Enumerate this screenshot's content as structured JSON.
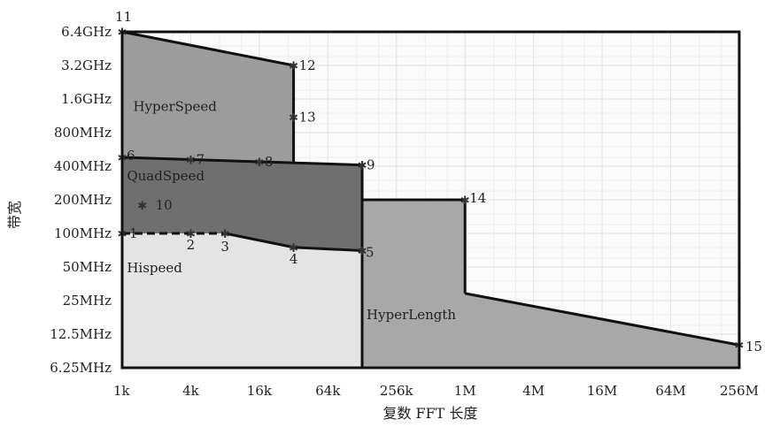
{
  "chart_data": {
    "type": "area",
    "xlabel": "复数 FFT 长度",
    "ylabel": "带宽",
    "x_scale": "log2",
    "y_scale": "log2",
    "x_ticks": [
      "1k",
      "4k",
      "16k",
      "64k",
      "256k",
      "1M",
      "4M",
      "16M",
      "64M",
      "256M"
    ],
    "y_ticks": [
      "6.25MHz",
      "12.5MHz",
      "25MHz",
      "50MHz",
      "100MHz",
      "200MHz",
      "400MHz",
      "800MHz",
      "1.6GHz",
      "3.2GHz",
      "6.4GHz"
    ],
    "xlim": [
      "1k",
      "256M"
    ],
    "ylim": [
      "6.25MHz",
      "6.4GHz"
    ],
    "grid": true,
    "regions": [
      {
        "name": "Hispeed",
        "color": "#e4e4e4",
        "boundary": [
          [
            "1k",
            "6.25MHz"
          ],
          [
            "1k",
            "100MHz"
          ],
          [
            "8k",
            "100MHz"
          ],
          [
            "32k",
            "75MHz"
          ],
          [
            "128k",
            "70MHz"
          ],
          [
            "128k",
            "6.25MHz"
          ]
        ]
      },
      {
        "name": "QuadSpeed",
        "color": "#6f6f6f",
        "boundary": [
          [
            "1k",
            "100MHz"
          ],
          [
            "1k",
            "480MHz"
          ],
          [
            "128k",
            "410MHz"
          ],
          [
            "128k",
            "70MHz"
          ],
          [
            "32k",
            "75MHz"
          ],
          [
            "8k",
            "100MHz"
          ]
        ]
      },
      {
        "name": "HyperSpeed",
        "color": "#9c9c9c",
        "boundary": [
          [
            "1k",
            "480MHz"
          ],
          [
            "1k",
            "6.4GHz"
          ],
          [
            "32k",
            "3.2GHz"
          ],
          [
            "32k",
            "430MHz"
          ]
        ]
      },
      {
        "name": "HyperLength",
        "color": "#a8a8a8",
        "boundary": [
          [
            "128k",
            "6.25MHz"
          ],
          [
            "128k",
            "200MHz"
          ],
          [
            "1M",
            "200MHz"
          ],
          [
            "1M",
            "29MHz"
          ],
          [
            "256M",
            "10MHz"
          ],
          [
            "256M",
            "6.25MHz"
          ]
        ]
      }
    ],
    "points": [
      {
        "label": "1",
        "x": "1k",
        "y": "100MHz"
      },
      {
        "label": "2",
        "x": "4k",
        "y": "100MHz"
      },
      {
        "label": "3",
        "x": "8k",
        "y": "100MHz"
      },
      {
        "label": "4",
        "x": "32k",
        "y": "75MHz"
      },
      {
        "label": "5",
        "x": "128k",
        "y": "70MHz"
      },
      {
        "label": "6",
        "x": "1k",
        "y": "480MHz"
      },
      {
        "label": "7",
        "x": "4k",
        "y": "460MHz"
      },
      {
        "label": "8",
        "x": "16k",
        "y": "440MHz"
      },
      {
        "label": "9",
        "x": "128k",
        "y": "410MHz"
      },
      {
        "label": "10",
        "x": "1.5k",
        "y": "180MHz"
      },
      {
        "label": "11",
        "x": "1k",
        "y": "6.4GHz"
      },
      {
        "label": "12",
        "x": "32k",
        "y": "3.2GHz"
      },
      {
        "label": "13",
        "x": "32k",
        "y": "1.1GHz"
      },
      {
        "label": "14",
        "x": "1M",
        "y": "200MHz"
      },
      {
        "label": "15",
        "x": "256M",
        "y": "10MHz"
      }
    ]
  }
}
